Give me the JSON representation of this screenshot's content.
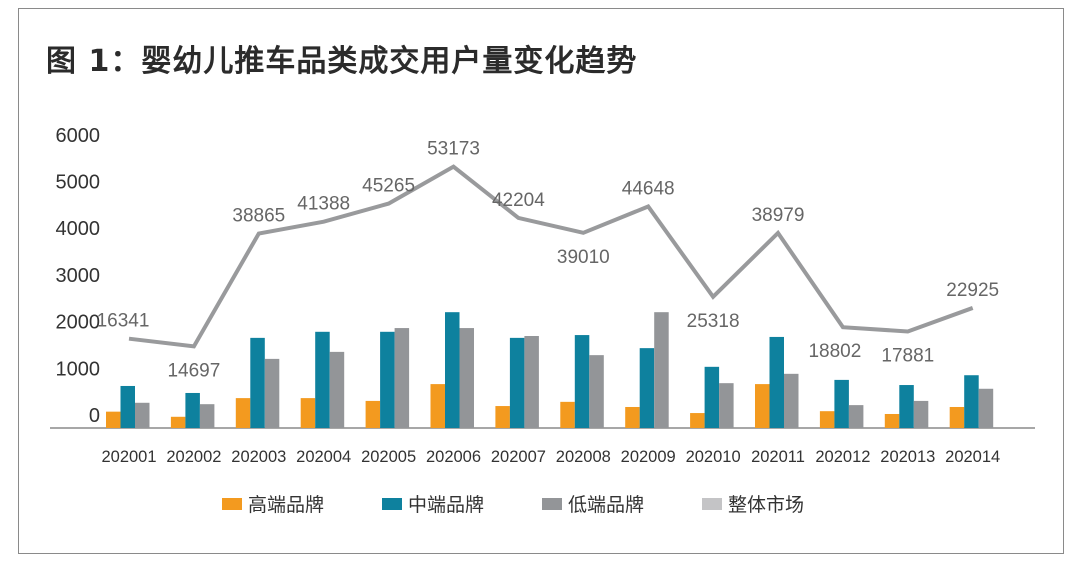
{
  "chart_data": {
    "type": "bar",
    "title": "图 1：婴幼儿推车品类成交用户量变化趋势",
    "categories": [
      "202001",
      "202002",
      "202003",
      "202004",
      "202005",
      "202006",
      "202007",
      "202008",
      "202009",
      "202010",
      "202011",
      "202012",
      "202013",
      "202014"
    ],
    "yticks": [
      0,
      1000,
      2000,
      3000,
      4000,
      5000,
      6000
    ],
    "ylim": [
      0,
      6000
    ],
    "grid": false,
    "legend_position": "bottom",
    "series": [
      {
        "name": "高端品牌",
        "type": "bar",
        "color": "#f39a1f",
        "values": [
          350,
          240,
          640,
          640,
          580,
          940,
          470,
          560,
          450,
          320,
          940,
          360,
          300,
          450
        ]
      },
      {
        "name": "中端品牌",
        "type": "bar",
        "color": "#0e819e",
        "values": [
          900,
          750,
          1930,
          2060,
          2060,
          2480,
          1930,
          1990,
          1710,
          1310,
          1950,
          1030,
          920,
          1130
        ]
      },
      {
        "name": "低端品牌",
        "type": "bar",
        "color": "#939598",
        "values": [
          540,
          510,
          1480,
          1630,
          2140,
          2140,
          1970,
          1560,
          2480,
          960,
          1160,
          490,
          580,
          840
        ]
      },
      {
        "name": "整体市场",
        "type": "line",
        "color": "#999a9c",
        "legend_color": "#c4c4c6",
        "values": [
          16341,
          14697,
          38865,
          41388,
          45265,
          53173,
          42204,
          39010,
          44648,
          25318,
          38979,
          18802,
          17881,
          22925
        ],
        "data_labels": [
          "16341",
          "14697",
          "38865",
          "41388",
          "45265",
          "53173",
          "42204",
          "39010",
          "44648",
          "25318",
          "38979",
          "18802",
          "17881",
          "22925"
        ]
      }
    ]
  }
}
